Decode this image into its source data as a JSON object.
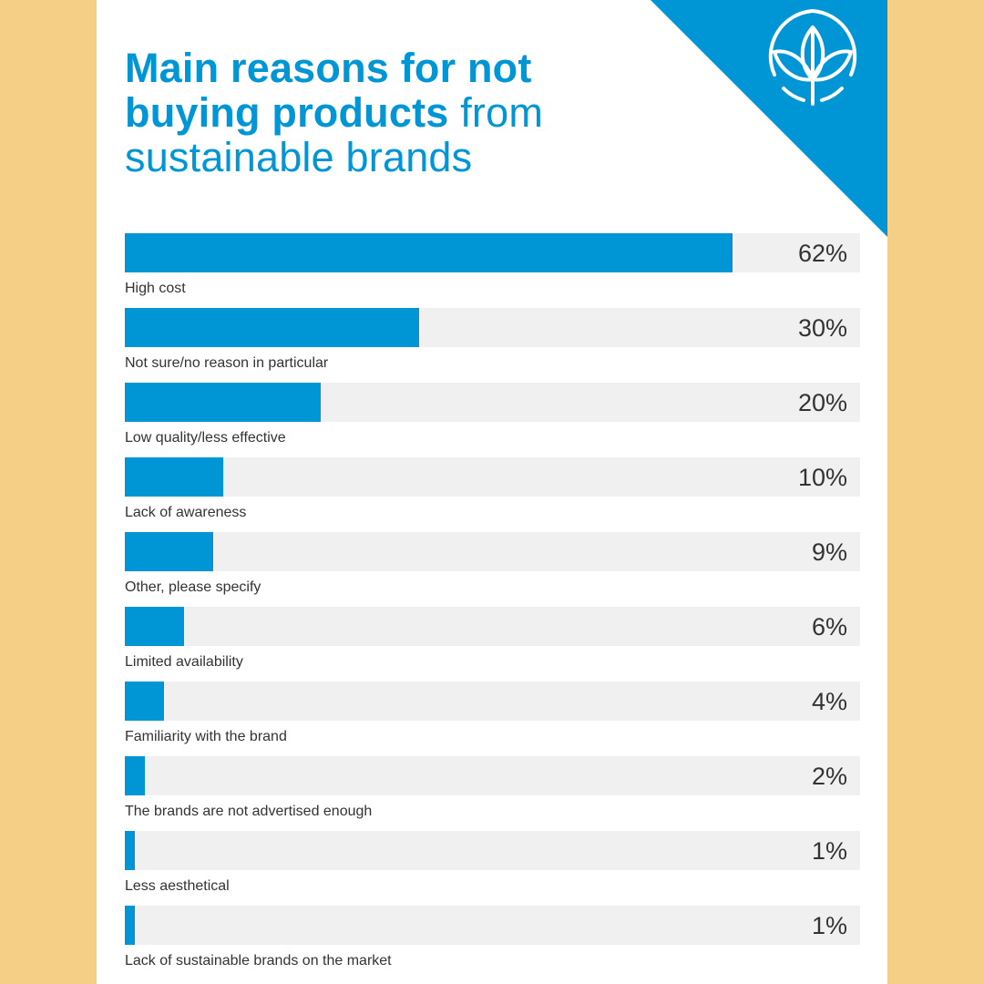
{
  "title": {
    "bold": "Main reasons for not buying products",
    "rest": " from sustainable brands"
  },
  "colors": {
    "accent": "#0096d6",
    "track": "#f0f0f0",
    "background": "#f5cf86",
    "text": "#333333"
  },
  "logo": {
    "icon": "leaf-sprout-icon"
  },
  "chart_data": {
    "type": "bar",
    "orientation": "horizontal",
    "categories": [
      "High cost",
      "Not sure/no reason in particular",
      "Low quality/less effective",
      "Lack of awareness",
      "Other, please specify",
      "Limited availability",
      "Familiarity with the brand",
      "The brands are not advertised enough",
      "Less aesthetical",
      "Lack of sustainable brands on the market"
    ],
    "values": [
      62,
      30,
      20,
      10,
      9,
      6,
      4,
      2,
      1,
      1
    ],
    "value_labels": [
      "62%",
      "30%",
      "20%",
      "10%",
      "9%",
      "6%",
      "4%",
      "2%",
      "1%",
      "1%"
    ],
    "unit": "%",
    "xlim": [
      0,
      75
    ],
    "grid": false,
    "legend": "none"
  }
}
